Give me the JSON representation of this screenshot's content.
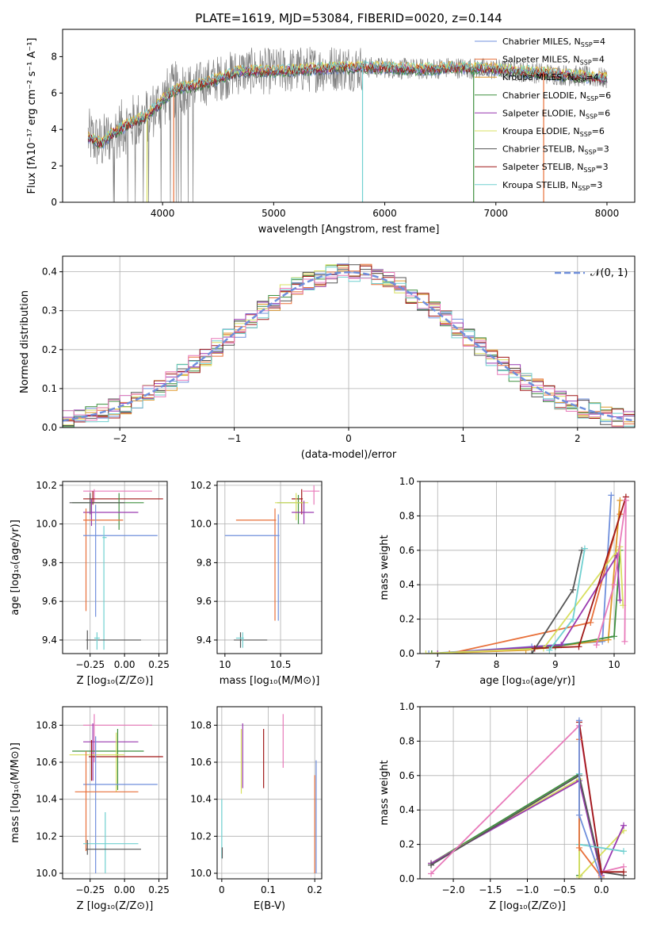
{
  "title": "PLATE=1619, MJD=53084, FIBERID=0020, z=0.144",
  "colors": {
    "chab_miles": "#6f8fdc",
    "salp_miles": "#e8703a",
    "krou_miles": "#e0982a",
    "chab_elodie": "#3f8f3f",
    "salp_elodie": "#9a3ab0",
    "krou_elodie": "#d8e060",
    "chab_stelib": "#555555",
    "salp_stelib": "#a01818",
    "krou_stelib": "#70d0d0",
    "data": "#808080",
    "pink": "#e87aba",
    "normal": "#6f8fdc"
  },
  "chart_data": [
    {
      "id": "spectrum",
      "type": "line",
      "xlabel": "wavelength [Angstrom, rest frame]",
      "ylabel": "Flux [fλ10⁻¹⁷ erg cm⁻² s⁻¹ A⁻¹]",
      "xlim": [
        3100,
        8250
      ],
      "ylim": [
        0,
        9.5
      ],
      "xticks": [
        4000,
        5000,
        6000,
        7000,
        8000
      ],
      "yticks": [
        0,
        2,
        4,
        6,
        8
      ],
      "legend": [
        {
          "label": "Chabrier MILES, N",
          "sub": "SSP",
          "suffix": "=4",
          "color": "chab_miles"
        },
        {
          "label": "Salpeter MILES, N",
          "sub": "SSP",
          "suffix": "=4",
          "color": "salp_miles"
        },
        {
          "label": "Kroupa MILES, N",
          "sub": "SSP",
          "suffix": "=4",
          "color": "krou_miles"
        },
        {
          "label": "Chabrier ELODIE, N",
          "sub": "SSP",
          "suffix": "=6",
          "color": "chab_elodie"
        },
        {
          "label": "Salpeter ELODIE, N",
          "sub": "SSP",
          "suffix": "=6",
          "color": "salp_elodie"
        },
        {
          "label": "Kroupa ELODIE, N",
          "sub": "SSP",
          "suffix": "=6",
          "color": "krou_elodie"
        },
        {
          "label": "Chabrier STELIB, N",
          "sub": "SSP",
          "suffix": "=3",
          "color": "chab_stelib"
        },
        {
          "label": "Salpeter STELIB, N",
          "sub": "SSP",
          "suffix": "=3",
          "color": "salp_stelib"
        },
        {
          "label": "Kroupa STELIB, N",
          "sub": "SSP",
          "suffix": "=3",
          "color": "krou_stelib"
        }
      ],
      "continuum": [
        [
          3300,
          3.7
        ],
        [
          3450,
          3.2
        ],
        [
          3550,
          3.8
        ],
        [
          3700,
          4.3
        ],
        [
          3850,
          4.7
        ],
        [
          3950,
          5.3
        ],
        [
          4050,
          5.9
        ],
        [
          4150,
          6.3
        ],
        [
          4300,
          6.4
        ],
        [
          4500,
          6.8
        ],
        [
          4700,
          7.2
        ],
        [
          5000,
          7.2
        ],
        [
          5300,
          7.3
        ],
        [
          5600,
          7.4
        ],
        [
          5800,
          7.4
        ],
        [
          6000,
          7.4
        ],
        [
          6300,
          7.3
        ],
        [
          6600,
          7.4
        ],
        [
          7000,
          7.3
        ],
        [
          7400,
          7.1
        ],
        [
          7800,
          6.9
        ],
        [
          8000,
          6.8
        ]
      ],
      "drops": [
        [
          3860,
          "krou_elodie"
        ],
        [
          4100,
          "salp_miles"
        ],
        [
          5800,
          "krou_stelib"
        ],
        [
          6800,
          "chab_elodie"
        ],
        [
          7430,
          "salp_miles"
        ]
      ]
    },
    {
      "id": "residuals",
      "type": "bar",
      "xlabel": "(data-model)/error",
      "ylabel": "Normed distribution",
      "xlim": [
        -2.5,
        2.5
      ],
      "ylim": [
        0,
        0.44
      ],
      "xticks": [
        -2,
        -1,
        0,
        1,
        2
      ],
      "yticks": [
        0.0,
        0.1,
        0.2,
        0.3,
        0.4
      ],
      "bin_width": 0.1,
      "legend_label": "𝒩(0, 1)",
      "series_colors": [
        "chab_miles",
        "salp_miles",
        "krou_miles",
        "chab_elodie",
        "salp_elodie",
        "krou_elodie",
        "chab_stelib",
        "salp_stelib",
        "krou_stelib",
        "pink"
      ]
    },
    {
      "id": "age_Z",
      "type": "scatter",
      "xlabel": "Z [log₁₀(Z/Z⊙)]",
      "ylabel": "age  [log₁₀(age/yr)]",
      "xlim": [
        -0.45,
        0.31
      ],
      "ylim": [
        9.33,
        10.22
      ],
      "xticks": [
        -0.25,
        0.0,
        0.25
      ],
      "yticks": [
        9.4,
        9.6,
        9.8,
        10.0,
        10.2
      ],
      "xticklabels": [
        "−0.25",
        "0.00",
        "0.25"
      ],
      "crosses": [
        {
          "c": "pink",
          "x": -0.22,
          "y": 10.17,
          "xe": [
            -0.3,
            0.2
          ],
          "ye": [
            10.11,
            10.18
          ]
        },
        {
          "c": "salp_stelib",
          "x": -0.23,
          "y": 10.13,
          "xe": [
            -0.3,
            0.28
          ],
          "ye": [
            10.1,
            10.17
          ]
        },
        {
          "c": "chab_elodie",
          "x": -0.04,
          "y": 10.11,
          "xe": [
            -0.38,
            0.14
          ],
          "ye": [
            9.97,
            10.16
          ]
        },
        {
          "c": "chab_stelib",
          "x": -0.25,
          "y": 10.11,
          "xe": [
            -0.4,
            0.0
          ],
          "ye": [
            10.05,
            10.16
          ]
        },
        {
          "c": "salp_elodie",
          "x": -0.24,
          "y": 10.06,
          "xe": [
            -0.3,
            0.1
          ],
          "ye": [
            9.99,
            10.13
          ]
        },
        {
          "c": "salp_miles",
          "x": -0.28,
          "y": 10.02,
          "xe": [
            -0.3,
            -0.01
          ],
          "ye": [
            9.55,
            10.08
          ]
        },
        {
          "c": "chab_miles",
          "x": -0.21,
          "y": 9.94,
          "xe": [
            -0.3,
            0.24
          ],
          "ye": [
            9.52,
            10.1
          ]
        },
        {
          "c": "krou_stelib",
          "x": -0.15,
          "y": 9.93,
          "xe": [
            -0.16,
            -0.13
          ],
          "ye": [
            9.35,
            9.99
          ]
        },
        {
          "c": "chab_stelib",
          "x": -0.27,
          "y": 9.4,
          "xe": [
            -0.28,
            0.12
          ],
          "ye": [
            9.35,
            9.45
          ]
        },
        {
          "c": "krou_stelib",
          "x": -0.2,
          "y": 9.41,
          "xe": [
            -0.22,
            -0.18
          ],
          "ye": [
            9.35,
            9.44
          ]
        }
      ]
    },
    {
      "id": "age_mass",
      "type": "scatter",
      "xlabel": "mass [log₁₀(M/M⊙)]",
      "ylabel": "",
      "xlim": [
        9.93,
        10.87
      ],
      "ylim": [
        9.33,
        10.22
      ],
      "xticks": [
        10.0,
        10.5
      ],
      "yticks": [
        9.4,
        9.6,
        9.8,
        10.0,
        10.2
      ],
      "crosses": [
        {
          "c": "pink",
          "x": 10.8,
          "y": 10.17,
          "xe": [
            10.7,
            10.85
          ],
          "ye": [
            10.1,
            10.2
          ]
        },
        {
          "c": "salp_stelib",
          "x": 10.69,
          "y": 10.13,
          "xe": [
            10.6,
            10.7
          ],
          "ye": [
            10.05,
            10.18
          ]
        },
        {
          "c": "chab_elodie",
          "x": 10.66,
          "y": 10.11,
          "xe": [
            10.47,
            10.7
          ],
          "ye": [
            10.0,
            10.15
          ]
        },
        {
          "c": "krou_elodie",
          "x": 10.64,
          "y": 10.11,
          "xe": [
            10.45,
            10.75
          ],
          "ye": [
            10.02,
            10.16
          ]
        },
        {
          "c": "salp_elodie",
          "x": 10.71,
          "y": 10.06,
          "xe": [
            10.6,
            10.8
          ],
          "ye": [
            10.0,
            10.12
          ]
        },
        {
          "c": "salp_miles",
          "x": 10.45,
          "y": 10.02,
          "xe": [
            10.1,
            10.46
          ],
          "ye": [
            9.5,
            10.08
          ]
        },
        {
          "c": "chab_miles",
          "x": 10.48,
          "y": 9.94,
          "xe": [
            10.0,
            10.49
          ],
          "ye": [
            9.5,
            10.05
          ]
        },
        {
          "c": "chab_stelib",
          "x": 10.14,
          "y": 9.4,
          "xe": [
            10.08,
            10.38
          ],
          "ye": [
            9.36,
            9.44
          ]
        },
        {
          "c": "krou_stelib",
          "x": 10.16,
          "y": 9.41,
          "xe": [
            10.1,
            10.17
          ],
          "ye": [
            9.36,
            9.44
          ]
        }
      ]
    },
    {
      "id": "mw_age",
      "type": "line",
      "xlabel": "age  [log₁₀(age/yr)]",
      "ylabel": "mass weight",
      "xlim": [
        6.7,
        10.35
      ],
      "ylim": [
        0,
        1.0
      ],
      "xticks": [
        7,
        8,
        9,
        10
      ],
      "yticks": [
        0.0,
        0.2,
        0.4,
        0.6,
        0.8,
        1.0
      ],
      "series": [
        {
          "c": "chab_miles",
          "x": [
            6.85,
            8.6,
            9.8,
            9.95
          ],
          "y": [
            0.0,
            0.04,
            0.07,
            0.92
          ]
        },
        {
          "c": "salp_miles",
          "x": [
            7.2,
            9.6,
            10.1
          ],
          "y": [
            0.0,
            0.18,
            0.81
          ]
        },
        {
          "c": "krou_miles",
          "x": [
            6.9,
            8.5,
            9.9,
            10.1
          ],
          "y": [
            0.0,
            0.02,
            0.08,
            0.89
          ]
        },
        {
          "c": "chab_elodie",
          "x": [
            6.9,
            9.0,
            10.0,
            10.1
          ],
          "y": [
            0.0,
            0.04,
            0.1,
            0.6
          ]
        },
        {
          "c": "salp_elodie",
          "x": [
            7.0,
            9.1,
            10.05,
            10.1
          ],
          "y": [
            0.0,
            0.05,
            0.57,
            0.31
          ]
        },
        {
          "c": "krou_elodie",
          "x": [
            6.8,
            8.8,
            10.1,
            10.15
          ],
          "y": [
            0.0,
            0.03,
            0.62,
            0.28
          ]
        },
        {
          "c": "chab_stelib",
          "x": [
            8.6,
            9.3,
            9.45
          ],
          "y": [
            0.0,
            0.37,
            0.6
          ]
        },
        {
          "c": "salp_stelib",
          "x": [
            8.65,
            9.4,
            10.2
          ],
          "y": [
            0.03,
            0.04,
            0.91
          ]
        },
        {
          "c": "krou_stelib",
          "x": [
            8.9,
            9.3,
            9.5
          ],
          "y": [
            0.02,
            0.2,
            0.61
          ]
        },
        {
          "c": "pink",
          "x": [
            9.7,
            10.0,
            10.2,
            10.18
          ],
          "y": [
            0.05,
            0.4,
            0.89,
            0.07
          ]
        }
      ]
    },
    {
      "id": "mass_Z",
      "type": "scatter",
      "xlabel": "Z [log₁₀(Z/Z⊙)]",
      "ylabel": "mass [log₁₀(M/M⊙)]",
      "xlim": [
        -0.45,
        0.31
      ],
      "ylim": [
        9.97,
        10.9
      ],
      "xticks": [
        -0.25,
        0.0,
        0.25
      ],
      "yticks": [
        10.0,
        10.2,
        10.4,
        10.6,
        10.8
      ],
      "xticklabels": [
        "−0.25",
        "0.00",
        "0.25"
      ],
      "crosses": [
        {
          "c": "pink",
          "x": -0.22,
          "y": 10.8,
          "xe": [
            -0.3,
            0.2
          ],
          "ye": [
            10.6,
            10.86
          ]
        },
        {
          "c": "salp_elodie",
          "x": -0.23,
          "y": 10.71,
          "xe": [
            -0.3,
            0.1
          ],
          "ye": [
            10.5,
            10.81
          ]
        },
        {
          "c": "chab_elodie",
          "x": -0.05,
          "y": 10.66,
          "xe": [
            -0.38,
            0.14
          ],
          "ye": [
            10.45,
            10.78
          ]
        },
        {
          "c": "krou_elodie",
          "x": -0.06,
          "y": 10.64,
          "xe": [
            -0.4,
            0.0
          ],
          "ye": [
            10.44,
            10.76
          ]
        },
        {
          "c": "salp_stelib",
          "x": -0.24,
          "y": 10.63,
          "xe": [
            -0.26,
            0.28
          ],
          "ye": [
            10.5,
            10.72
          ]
        },
        {
          "c": "chab_miles",
          "x": -0.21,
          "y": 10.48,
          "xe": [
            -0.3,
            0.24
          ],
          "ye": [
            10.0,
            10.74
          ]
        },
        {
          "c": "salp_miles",
          "x": -0.28,
          "y": 10.44,
          "xe": [
            -0.36,
            0.1
          ],
          "ye": [
            10.12,
            10.66
          ]
        },
        {
          "c": "krou_stelib",
          "x": -0.14,
          "y": 10.16,
          "xe": [
            -0.3,
            0.1
          ],
          "ye": [
            10.0,
            10.33
          ]
        },
        {
          "c": "chab_stelib",
          "x": -0.27,
          "y": 10.13,
          "xe": [
            -0.28,
            0.12
          ],
          "ye": [
            10.1,
            10.18
          ]
        }
      ]
    },
    {
      "id": "mass_EBV",
      "type": "scatter",
      "xlabel": "E(B-V)",
      "ylabel": "",
      "xlim": [
        -0.01,
        0.215
      ],
      "ylim": [
        9.97,
        10.9
      ],
      "xticks": [
        0.0,
        0.1,
        0.2
      ],
      "yticks": [
        10.0,
        10.2,
        10.4,
        10.6,
        10.8
      ],
      "bars": [
        {
          "c": "krou_stelib",
          "x": 0.0,
          "y0": 10.08,
          "y1": 10.4
        },
        {
          "c": "chab_stelib",
          "x": 0.001,
          "y0": 10.08,
          "y1": 10.14
        },
        {
          "c": "krou_elodie",
          "x": 0.042,
          "y0": 10.43,
          "y1": 10.78
        },
        {
          "c": "salp_elodie",
          "x": 0.045,
          "y0": 10.46,
          "y1": 10.81
        },
        {
          "c": "salp_stelib",
          "x": 0.09,
          "y0": 10.46,
          "y1": 10.78
        },
        {
          "c": "pink",
          "x": 0.132,
          "y0": 10.57,
          "y1": 10.86
        },
        {
          "c": "salp_miles",
          "x": 0.2,
          "y0": 10.0,
          "y1": 10.53
        },
        {
          "c": "chab_miles",
          "x": 0.203,
          "y0": 10.0,
          "y1": 10.61
        }
      ]
    },
    {
      "id": "mw_Z",
      "type": "line",
      "xlabel": "Z [log₁₀(Z/Z⊙)]",
      "ylabel": "mass weight",
      "xlim": [
        -2.45,
        0.45
      ],
      "ylim": [
        0,
        1.0
      ],
      "xticks": [
        -2.0,
        -1.5,
        -1.0,
        -0.5,
        0.0
      ],
      "yticks": [
        0.0,
        0.2,
        0.4,
        0.6,
        0.8,
        1.0
      ],
      "xticklabels": [
        "−2.0",
        "−1.5",
        "−1.0",
        "−0.5",
        "0.0"
      ],
      "series": [
        {
          "c": "chab_elodie",
          "x": [
            -2.3,
            -0.3,
            -0.3
          ],
          "y": [
            0.09,
            0.61,
            0.02
          ]
        },
        {
          "c": "krou_elodie",
          "x": [
            -2.3,
            -0.3,
            -0.3,
            0.3
          ],
          "y": [
            0.09,
            0.58,
            0.01,
            0.28
          ]
        },
        {
          "c": "salp_elodie",
          "x": [
            -2.3,
            -0.3,
            0.0,
            0.3
          ],
          "y": [
            0.09,
            0.57,
            0.02,
            0.31
          ]
        },
        {
          "c": "chab_stelib",
          "x": [
            -2.3,
            -0.3,
            0.0,
            0.3
          ],
          "y": [
            0.08,
            0.6,
            0.04,
            0.02
          ]
        },
        {
          "c": "pink",
          "x": [
            -2.3,
            -0.3,
            0.0,
            0.3
          ],
          "y": [
            0.03,
            0.89,
            0.04,
            0.07
          ]
        },
        {
          "c": "salp_stelib",
          "x": [
            -0.3,
            0.0,
            0.3
          ],
          "y": [
            0.91,
            0.04,
            0.04
          ]
        },
        {
          "c": "krou_stelib",
          "x": [
            -0.3,
            -0.3,
            0.3
          ],
          "y": [
            0.61,
            0.2,
            0.16
          ]
        },
        {
          "c": "salp_miles",
          "x": [
            -0.3,
            -0.3,
            0.0
          ],
          "y": [
            0.81,
            0.18,
            0.01
          ]
        },
        {
          "c": "chab_miles",
          "x": [
            -0.3,
            -0.3,
            0.0
          ],
          "y": [
            0.92,
            0.37,
            0.0
          ]
        }
      ]
    }
  ]
}
